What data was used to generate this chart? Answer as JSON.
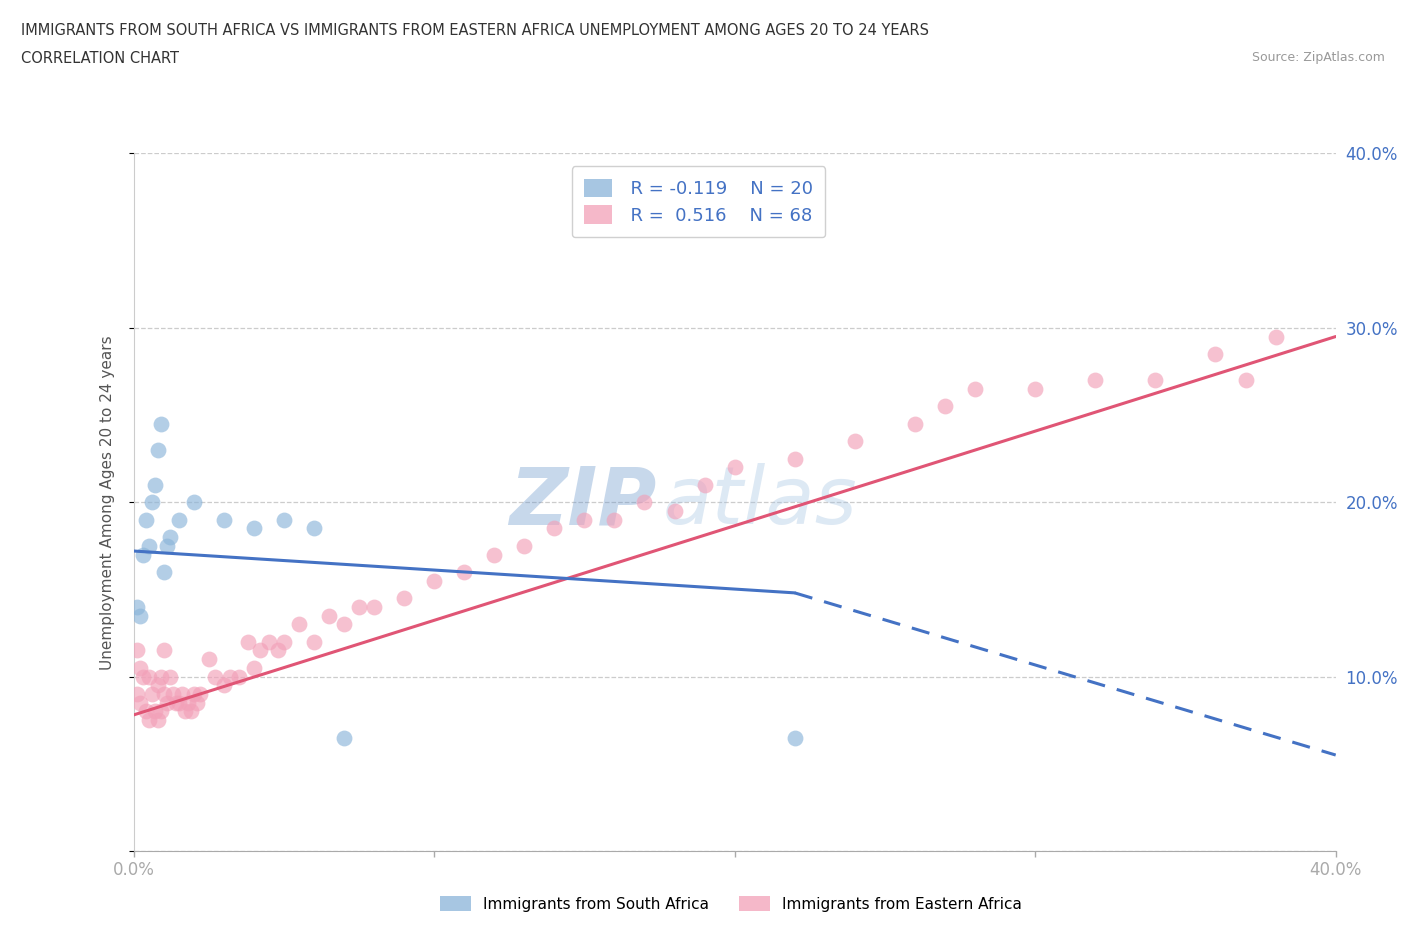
{
  "title_line1": "IMMIGRANTS FROM SOUTH AFRICA VS IMMIGRANTS FROM EASTERN AFRICA UNEMPLOYMENT AMONG AGES 20 TO 24 YEARS",
  "title_line2": "CORRELATION CHART",
  "source_text": "Source: ZipAtlas.com",
  "ylabel": "Unemployment Among Ages 20 to 24 years",
  "xlim": [
    0,
    0.4
  ],
  "ylim": [
    0,
    0.4
  ],
  "south_africa_color": "#8ab4d9",
  "eastern_africa_color": "#f2a0b8",
  "south_africa_line_color": "#4472c4",
  "eastern_africa_line_color": "#e05575",
  "legend_R_south": "R = -0.119",
  "legend_N_south": "N = 20",
  "legend_R_eastern": "R =  0.516",
  "legend_N_eastern": "N = 68",
  "watermark_zip": "ZIP",
  "watermark_atlas": "atlas",
  "grid_color": "#cccccc",
  "background_color": "#ffffff",
  "south_africa_x": [
    0.001,
    0.002,
    0.003,
    0.004,
    0.005,
    0.006,
    0.007,
    0.008,
    0.009,
    0.01,
    0.011,
    0.012,
    0.015,
    0.02,
    0.03,
    0.04,
    0.05,
    0.06,
    0.07,
    0.22
  ],
  "south_africa_y": [
    0.14,
    0.135,
    0.17,
    0.19,
    0.175,
    0.2,
    0.21,
    0.23,
    0.245,
    0.16,
    0.175,
    0.18,
    0.19,
    0.2,
    0.19,
    0.185,
    0.19,
    0.185,
    0.065,
    0.065
  ],
  "eastern_africa_x": [
    0.001,
    0.001,
    0.002,
    0.002,
    0.003,
    0.004,
    0.005,
    0.005,
    0.006,
    0.007,
    0.008,
    0.008,
    0.009,
    0.009,
    0.01,
    0.01,
    0.011,
    0.012,
    0.013,
    0.014,
    0.015,
    0.016,
    0.017,
    0.018,
    0.019,
    0.02,
    0.021,
    0.022,
    0.025,
    0.027,
    0.03,
    0.032,
    0.035,
    0.038,
    0.04,
    0.042,
    0.045,
    0.048,
    0.05,
    0.055,
    0.06,
    0.065,
    0.07,
    0.075,
    0.08,
    0.09,
    0.1,
    0.11,
    0.12,
    0.13,
    0.14,
    0.15,
    0.16,
    0.17,
    0.18,
    0.19,
    0.2,
    0.22,
    0.24,
    0.26,
    0.27,
    0.28,
    0.3,
    0.32,
    0.34,
    0.36,
    0.37,
    0.38
  ],
  "eastern_africa_y": [
    0.115,
    0.09,
    0.085,
    0.105,
    0.1,
    0.08,
    0.075,
    0.1,
    0.09,
    0.08,
    0.075,
    0.095,
    0.1,
    0.08,
    0.115,
    0.09,
    0.085,
    0.1,
    0.09,
    0.085,
    0.085,
    0.09,
    0.08,
    0.085,
    0.08,
    0.09,
    0.085,
    0.09,
    0.11,
    0.1,
    0.095,
    0.1,
    0.1,
    0.12,
    0.105,
    0.115,
    0.12,
    0.115,
    0.12,
    0.13,
    0.12,
    0.135,
    0.13,
    0.14,
    0.14,
    0.145,
    0.155,
    0.16,
    0.17,
    0.175,
    0.185,
    0.19,
    0.19,
    0.2,
    0.195,
    0.21,
    0.22,
    0.225,
    0.235,
    0.245,
    0.255,
    0.265,
    0.265,
    0.27,
    0.27,
    0.285,
    0.27,
    0.295
  ],
  "sa_line_x0": 0.0,
  "sa_line_y0": 0.172,
  "sa_line_x1": 0.22,
  "sa_line_y1": 0.148,
  "sa_line_x_dash_end": 0.4,
  "sa_line_y_dash_end": 0.055,
  "ea_line_x0": 0.0,
  "ea_line_y0": 0.078,
  "ea_line_x1": 0.4,
  "ea_line_y1": 0.295
}
